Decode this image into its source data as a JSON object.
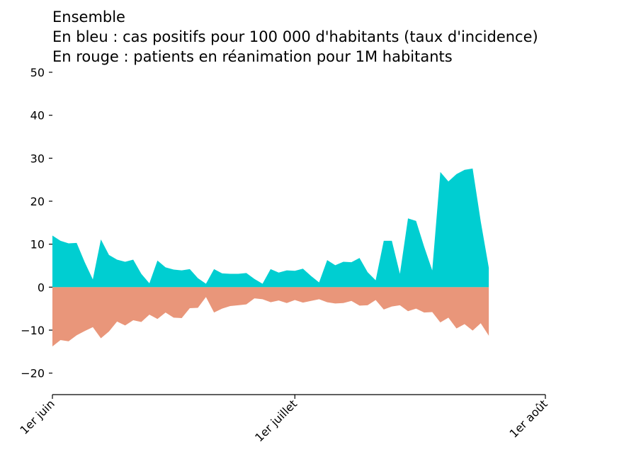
{
  "chart_data": {
    "type": "area",
    "title_lines": [
      "Ensemble",
      "En bleu : cas positifs pour 100 000 d'habitants (taux d'incidence)",
      "En rouge : patients en réanimation pour 1M habitants"
    ],
    "xlabel": "",
    "ylabel": "",
    "ylim": [
      -25,
      50
    ],
    "yticks": [
      -20,
      -10,
      0,
      10,
      20,
      30,
      40,
      50
    ],
    "xlim_days": [
      0,
      61
    ],
    "xticks": [
      {
        "day": 0,
        "label": "1er juin"
      },
      {
        "day": 30,
        "label": "1er juillet"
      },
      {
        "day": 61,
        "label": "1er août"
      }
    ],
    "grid": false,
    "legend": "none",
    "series": [
      {
        "color": "#00CED1",
        "days": [
          0,
          1,
          2,
          3,
          4,
          5,
          6,
          7,
          8,
          9,
          10,
          11,
          12,
          13,
          14,
          15,
          16,
          17,
          18,
          19,
          20,
          21,
          22,
          23,
          24,
          25,
          26,
          27,
          28,
          29,
          30,
          31,
          32,
          33,
          34,
          35,
          36,
          37,
          38,
          39,
          40,
          41,
          42,
          43,
          44,
          45,
          46,
          47,
          48,
          49,
          50,
          51,
          52,
          53,
          54
        ],
        "values": [
          12,
          10.8,
          10.2,
          10.3,
          5.8,
          1.8,
          11.1,
          7.5,
          6.4,
          5.9,
          6.4,
          3.1,
          0.9,
          6.2,
          4.6,
          4.1,
          3.9,
          4.2,
          2.1,
          0.8,
          4.2,
          3.2,
          3.1,
          3.1,
          3.3,
          1.9,
          0.8,
          4.2,
          3.4,
          3.9,
          3.8,
          4.3,
          2.6,
          1.1,
          6.3,
          5.1,
          5.9,
          5.8,
          6.8,
          3.5,
          1.6,
          10.8,
          10.8,
          3.1,
          16,
          15.4,
          9.4,
          3.9,
          26.8,
          24.6,
          26.3,
          27.3,
          27.6,
          15.3,
          4.5
        ]
      },
      {
        "color": "#E9967A",
        "days": [
          0,
          1,
          2,
          3,
          4,
          5,
          6,
          7,
          8,
          9,
          10,
          11,
          12,
          13,
          14,
          15,
          16,
          17,
          18,
          19,
          20,
          21,
          22,
          23,
          24,
          25,
          26,
          27,
          28,
          29,
          30,
          31,
          32,
          33,
          34,
          35,
          36,
          37,
          38,
          39,
          40,
          41,
          42,
          43,
          44,
          45,
          46,
          47,
          48,
          49,
          50,
          51,
          52,
          53,
          54
        ],
        "values": [
          -13.8,
          -12.3,
          -12.6,
          -11.2,
          -10.2,
          -9.3,
          -11.9,
          -10.3,
          -8,
          -8.9,
          -7.7,
          -8.1,
          -6.4,
          -7.4,
          -5.9,
          -7.1,
          -7.2,
          -4.9,
          -4.8,
          -2.3,
          -5.9,
          -5,
          -4.4,
          -4.2,
          -4,
          -2.6,
          -2.8,
          -3.5,
          -3.1,
          -3.7,
          -3,
          -3.6,
          -3.2,
          -2.8,
          -3.5,
          -3.8,
          -3.7,
          -3.2,
          -4.3,
          -4.2,
          -3,
          -5.2,
          -4.5,
          -4.2,
          -5.6,
          -5,
          -5.9,
          -5.8,
          -8.2,
          -7.1,
          -9.6,
          -8.6,
          -10.1,
          -8.4,
          -11.3
        ]
      }
    ]
  }
}
